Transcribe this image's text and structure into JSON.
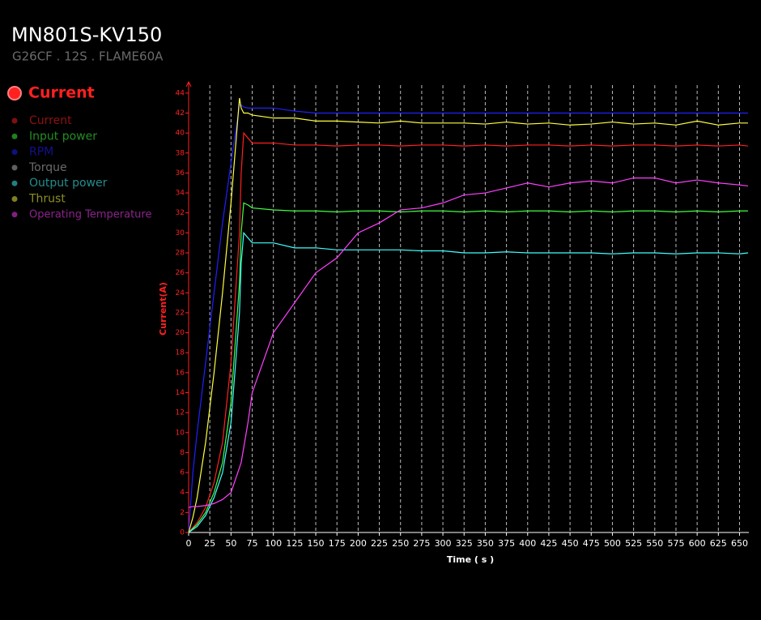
{
  "chart_data": {
    "type": "line",
    "title": "MN801S-KV150",
    "subtitle": "G26CF . 12S . FLAME60A",
    "selected": "Current",
    "y_label": "Current(A)",
    "x_label": "Time ( s )",
    "x": [
      0,
      5,
      10,
      20,
      30,
      40,
      50,
      60,
      62,
      65,
      70,
      75,
      100,
      125,
      150,
      175,
      200,
      225,
      250,
      275,
      300,
      325,
      350,
      375,
      400,
      425,
      450,
      475,
      500,
      525,
      550,
      575,
      600,
      625,
      650,
      660
    ],
    "series": [
      {
        "name": "Current",
        "color": "#ff2020",
        "values": [
          0,
          0.5,
          1,
          2.5,
          5,
          9,
          17,
          30,
          36,
          40,
          39.5,
          39,
          39,
          38.8,
          38.8,
          38.7,
          38.8,
          38.8,
          38.7,
          38.8,
          38.8,
          38.7,
          38.8,
          38.7,
          38.8,
          38.8,
          38.7,
          38.8,
          38.7,
          38.8,
          38.8,
          38.7,
          38.8,
          38.7,
          38.8,
          38.7
        ]
      },
      {
        "name": "Input power",
        "color": "#40ff40",
        "values": [
          0,
          0.4,
          0.8,
          2,
          4,
          7,
          13,
          25,
          30,
          33,
          32.8,
          32.5,
          32.3,
          32.2,
          32.2,
          32.1,
          32.2,
          32.2,
          32.1,
          32.2,
          32.2,
          32.1,
          32.2,
          32.1,
          32.2,
          32.2,
          32.1,
          32.2,
          32.1,
          32.2,
          32.2,
          32.1,
          32.2,
          32.1,
          32.2,
          32.2
        ]
      },
      {
        "name": "RPM",
        "color": "#2020ff",
        "values": [
          0,
          6,
          10,
          17,
          24,
          31,
          37,
          42.8,
          42.8,
          42.6,
          42.5,
          42.5,
          42.5,
          42.2,
          42,
          42,
          42,
          42,
          42,
          42,
          42,
          42,
          42,
          42,
          42,
          42,
          42,
          42,
          42,
          42,
          42,
          42,
          42,
          42,
          42,
          42
        ]
      },
      {
        "name": "Torque",
        "color": "#c0c0c0",
        "values": [
          null,
          null,
          null,
          null,
          null,
          null,
          null,
          null,
          null,
          null,
          null,
          null,
          null,
          null,
          null,
          null,
          null,
          null,
          null,
          null,
          null,
          null,
          null,
          null,
          null,
          null,
          null,
          null,
          null,
          null,
          null,
          null,
          null,
          null,
          null,
          null
        ]
      },
      {
        "name": "Output power",
        "color": "#40ffff",
        "values": [
          0,
          0.3,
          0.6,
          1.7,
          3.5,
          6,
          11,
          22,
          27,
          30,
          29.5,
          29,
          29,
          28.5,
          28.5,
          28.3,
          28.3,
          28.3,
          28.3,
          28.2,
          28.2,
          28,
          28,
          28.1,
          28,
          28,
          28,
          28,
          27.9,
          28,
          28,
          27.9,
          28,
          28,
          27.9,
          28
        ]
      },
      {
        "name": "Thrust",
        "color": "#ffff40",
        "values": [
          0,
          1.5,
          3.5,
          9,
          16,
          24,
          33,
          43.5,
          42.5,
          42,
          42,
          41.8,
          41.5,
          41.5,
          41.2,
          41.2,
          41.1,
          41,
          41.2,
          41,
          41,
          41,
          40.9,
          41.1,
          40.9,
          41,
          40.8,
          40.9,
          41.1,
          40.9,
          41,
          40.8,
          41.2,
          40.8,
          41,
          41
        ]
      },
      {
        "name": "Operating Temperature",
        "color": "#ff40ff",
        "values": [
          2.5,
          2.6,
          2.6,
          2.7,
          2.9,
          3.3,
          4,
          6.5,
          7,
          8.5,
          11,
          14,
          20,
          23,
          26,
          27.5,
          30,
          31,
          32.3,
          32.5,
          33,
          33.8,
          34,
          34.5,
          35,
          34.6,
          35,
          35.2,
          35,
          35.5,
          35.5,
          35,
          35.3,
          35,
          34.8,
          34.7
        ]
      }
    ],
    "xlim": [
      0,
      661
    ],
    "ylim": [
      0,
      44.8
    ],
    "xticks": [
      0,
      25,
      50,
      75,
      100,
      125,
      150,
      175,
      200,
      225,
      250,
      275,
      300,
      325,
      350,
      375,
      400,
      425,
      450,
      475,
      500,
      525,
      550,
      575,
      600,
      625,
      650
    ],
    "yticks": [
      0,
      2,
      4,
      6,
      8,
      10,
      12,
      14,
      16,
      18,
      20,
      22,
      24,
      26,
      28,
      30,
      32,
      34,
      36,
      38,
      40,
      42,
      44
    ],
    "grid": true,
    "axis_color": "#ff2020"
  }
}
